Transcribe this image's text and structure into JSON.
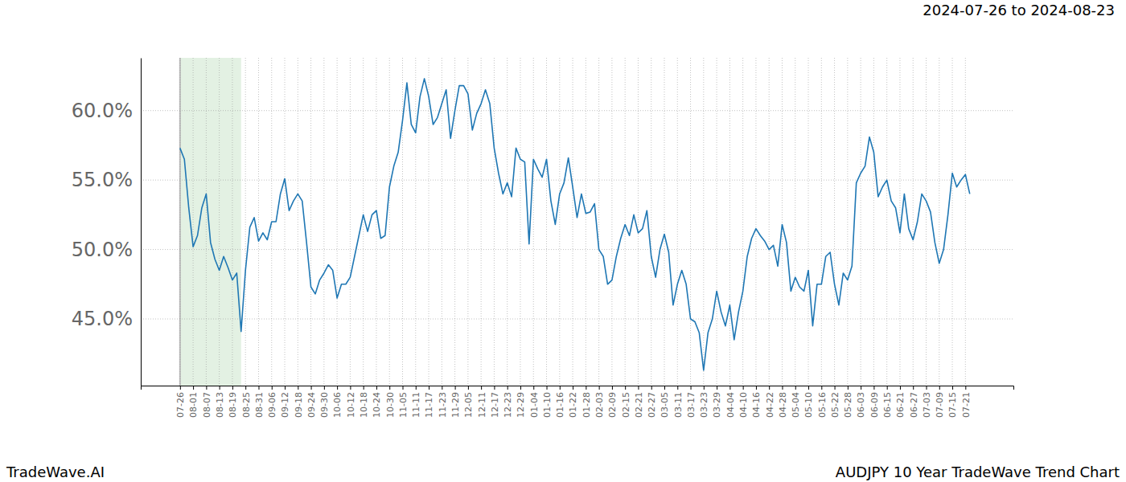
{
  "chart_data": {
    "type": "line",
    "title": "AUDJPY 10 Year TradeWave Trend Chart",
    "subtitle": "2024-07-26 to 2024-08-23",
    "annotations": [
      "TradeWave.AI"
    ],
    "categories": [
      "07-26",
      null,
      null,
      "08-01",
      null,
      null,
      "08-07",
      null,
      null,
      "08-13",
      null,
      null,
      "08-19",
      null,
      null,
      "08-25",
      null,
      null,
      "08-31",
      null,
      null,
      "09-06",
      null,
      null,
      "09-12",
      null,
      null,
      "09-18",
      null,
      null,
      "09-24",
      null,
      null,
      "09-30",
      null,
      null,
      "10-06",
      null,
      null,
      "10-12",
      null,
      null,
      "10-18",
      null,
      null,
      "10-24",
      null,
      null,
      "10-30",
      null,
      null,
      "11-05",
      null,
      null,
      "11-11",
      null,
      null,
      "11-17",
      null,
      null,
      "11-23",
      null,
      null,
      "11-29",
      null,
      null,
      "12-05",
      null,
      null,
      "12-11",
      null,
      null,
      "12-17",
      null,
      null,
      "12-23",
      null,
      null,
      "12-29",
      null,
      null,
      "01-04",
      null,
      null,
      "01-10",
      null,
      null,
      "01-16",
      null,
      null,
      "01-22",
      null,
      null,
      "01-28",
      null,
      null,
      "02-03",
      null,
      null,
      "02-09",
      null,
      null,
      "02-15",
      null,
      null,
      "02-21",
      null,
      null,
      "02-27",
      null,
      null,
      "03-05",
      null,
      null,
      "03-11",
      null,
      null,
      "03-17",
      null,
      null,
      "03-23",
      null,
      null,
      "03-29",
      null,
      null,
      "04-04",
      null,
      null,
      "04-10",
      null,
      null,
      "04-16",
      null,
      null,
      "04-22",
      null,
      null,
      "04-28",
      null,
      null,
      "05-04",
      null,
      null,
      "05-10",
      null,
      null,
      "05-16",
      null,
      null,
      "05-22",
      null,
      null,
      "05-28",
      null,
      null,
      "06-03",
      null,
      null,
      "06-09",
      null,
      null,
      "06-15",
      null,
      null,
      "06-21",
      null,
      null,
      "06-27",
      null,
      null,
      "07-03",
      null,
      null,
      "07-09",
      null,
      null,
      "07-15",
      null,
      null,
      "07-21",
      null
    ],
    "series": [
      {
        "color": "#1f77b4",
        "values": [
          57.3,
          56.5,
          53.0,
          50.2,
          51.0,
          53.0,
          54.0,
          50.5,
          49.3,
          48.5,
          49.5,
          48.7,
          47.8,
          48.3,
          44.1,
          48.5,
          51.6,
          52.3,
          50.6,
          51.2,
          50.7,
          52.0,
          52.0,
          54.0,
          55.1,
          52.8,
          53.5,
          54.0,
          53.5,
          50.5,
          47.3,
          46.8,
          47.8,
          48.3,
          48.9,
          48.5,
          46.5,
          47.5,
          47.5,
          48.0,
          49.5,
          51.0,
          52.5,
          51.3,
          52.5,
          52.8,
          50.8,
          51.0,
          54.5,
          56.0,
          57.0,
          59.3,
          62.0,
          59.0,
          58.4,
          61.0,
          62.3,
          61.0,
          59.0,
          59.5,
          60.5,
          61.5,
          58.0,
          60.0,
          61.8,
          61.8,
          61.2,
          58.6,
          59.8,
          60.5,
          61.5,
          60.5,
          57.3,
          55.5,
          54.0,
          54.8,
          53.8,
          57.3,
          56.5,
          56.3,
          50.4,
          56.5,
          55.8,
          55.2,
          56.5,
          53.5,
          51.8,
          54.0,
          54.8,
          56.6,
          54.5,
          52.3,
          54.0,
          52.6,
          52.7,
          53.3,
          50.0,
          49.5,
          47.5,
          47.8,
          49.5,
          50.8,
          51.8,
          51.0,
          52.5,
          51.2,
          51.5,
          52.8,
          49.5,
          48.0,
          50.0,
          51.1,
          49.8,
          46.0,
          47.5,
          48.5,
          47.5,
          45.0,
          44.8,
          44.0,
          41.3,
          44.0,
          45.0,
          47.0,
          45.5,
          44.5,
          46.0,
          43.5,
          45.5,
          47.0,
          49.5,
          50.8,
          51.5,
          51.0,
          50.6,
          50.0,
          50.3,
          48.8,
          51.8,
          50.5,
          47.0,
          48.0,
          47.3,
          47.0,
          48.5,
          44.5,
          47.5,
          47.5,
          49.5,
          49.8,
          47.5,
          46.0,
          48.3,
          47.8,
          48.8,
          54.8,
          55.5,
          56.0,
          58.1,
          57.0,
          53.8,
          54.5,
          55.0,
          53.5,
          53.0,
          51.2,
          54.0,
          51.5,
          50.7,
          52.0,
          54.0,
          53.5,
          52.7,
          50.5,
          49.0,
          50.0,
          52.5,
          55.5,
          54.5,
          55.0,
          55.4,
          54.0
        ]
      }
    ],
    "highlight": [
      0,
      14
    ],
    "xlim": [
      -9,
      191
    ],
    "ylim": [
      40.2,
      63.8
    ],
    "yticks": [
      {
        "value": 45,
        "label": "45.0%"
      },
      {
        "value": 50,
        "label": "50.0%"
      },
      {
        "value": 55,
        "label": "55.0%"
      },
      {
        "value": 60,
        "label": "60.0%"
      }
    ],
    "grid": true
  }
}
